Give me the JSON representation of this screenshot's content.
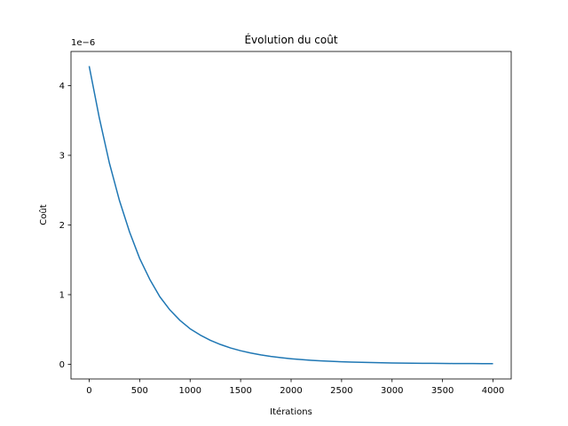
{
  "chart_data": {
    "type": "line",
    "title": "Évolution du coût",
    "xlabel": "Itérations",
    "ylabel": "Coût",
    "y_offset_label": "1e−6",
    "xlim": [
      -180,
      4180
    ],
    "ylim": [
      -2.1e-07,
      4.49e-06
    ],
    "xticks": [
      0,
      500,
      1000,
      1500,
      2000,
      2500,
      3000,
      3500,
      4000
    ],
    "xtick_labels": [
      "0",
      "500",
      "1000",
      "1500",
      "2000",
      "2500",
      "3000",
      "3500",
      "4000"
    ],
    "yticks": [
      0,
      1e-06,
      2e-06,
      3e-06,
      4e-06
    ],
    "ytick_labels": [
      "0",
      "1",
      "2",
      "3",
      "4"
    ],
    "grid": false,
    "line_color": "#1f77b4",
    "series": [
      {
        "x": [
          0,
          100,
          200,
          300,
          400,
          500,
          600,
          700,
          800,
          900,
          1000,
          1100,
          1200,
          1300,
          1400,
          1500,
          1600,
          1700,
          1800,
          1900,
          2000,
          2100,
          2200,
          2300,
          2400,
          2500,
          2600,
          2700,
          2800,
          2900,
          3000,
          3100,
          3200,
          3300,
          3400,
          3500,
          3600,
          3700,
          3800,
          3900,
          4000
        ],
        "values": [
          4.28e-06,
          3.54e-06,
          2.89e-06,
          2.35e-06,
          1.9e-06,
          1.52e-06,
          1.22e-06,
          9.7e-07,
          7.8e-07,
          6.3e-07,
          5.1e-07,
          4.2e-07,
          3.45e-07,
          2.85e-07,
          2.35e-07,
          1.95e-07,
          1.62e-07,
          1.35e-07,
          1.13e-07,
          9.5e-08,
          8e-08,
          6.8e-08,
          5.8e-08,
          5e-08,
          4.3e-08,
          3.7e-08,
          3.2e-08,
          2.8e-08,
          2.5e-08,
          2.2e-08,
          2e-08,
          1.8e-08,
          1.6e-08,
          1.5e-08,
          1.4e-08,
          1.3e-08,
          1.2e-08,
          1.1e-08,
          1.1e-08,
          1e-08,
          1e-08
        ]
      }
    ]
  }
}
